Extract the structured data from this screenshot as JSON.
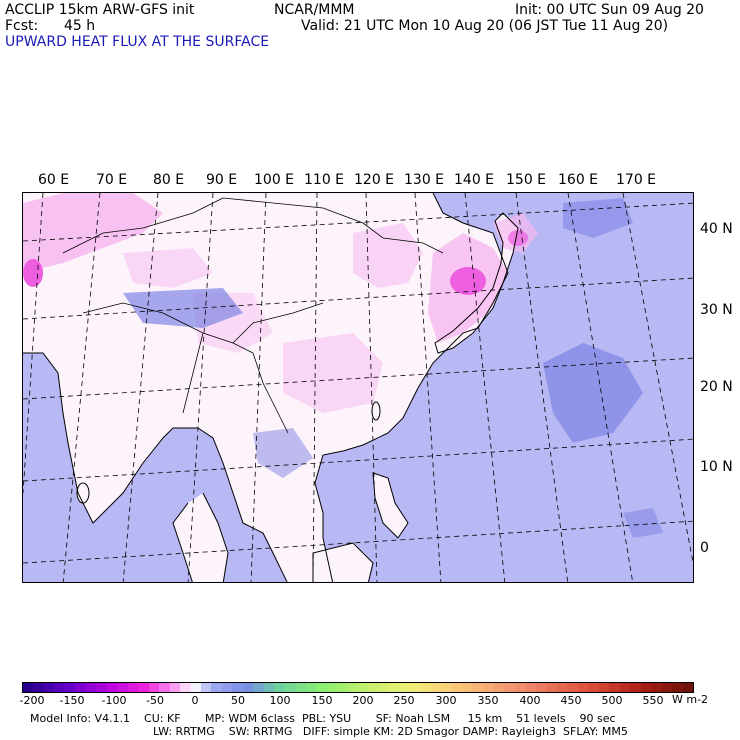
{
  "header": {
    "model": "ACCLIP 15km ARW-GFS init",
    "center": "NCAR/MMM",
    "init": "Init: 00 UTC Sun 09 Aug 20",
    "fcst_label": "Fcst:",
    "fcst_value": "45 h",
    "valid": "Valid: 21 UTC Mon 10 Aug 20 (06 JST Tue 11 Aug 20)",
    "field": "UPWARD HEAT FLUX AT THE SURFACE"
  },
  "map": {
    "lon_labels": [
      "60 E",
      "70 E",
      "80 E",
      "90 E",
      "100 E",
      "110 E",
      "120 E",
      "130 E",
      "140 E",
      "150 E",
      "160 E",
      "170 E"
    ],
    "lat_labels": [
      "40 N",
      "30 N",
      "20 N",
      "10 N",
      "0"
    ],
    "colors": {
      "ocean": "#b8b8f4",
      "land": "#fdf4fb",
      "pink": "#f6b8f0",
      "magenta": "#ee5ee0",
      "blue": "#7f84e4"
    }
  },
  "colorbar": {
    "labels": [
      "-200",
      "-150",
      "-100",
      "-50",
      "0",
      "50",
      "100",
      "150",
      "200",
      "250",
      "300",
      "350",
      "400",
      "450",
      "500",
      "550"
    ],
    "units": "W m-2",
    "min": -200,
    "max": 600
  },
  "footer": {
    "line1": "Model Info: V4.1.1    CU: KF       MP: WDM 6class  PBL: YSU       SF: Noah LSM     15 km    51 levels    90 sec",
    "line2": "LW: RRTMG    SW: RRTMG   DIFF: simple KM: 2D Smagor DAMP: Rayleigh3  SFLAY: MM5"
  }
}
